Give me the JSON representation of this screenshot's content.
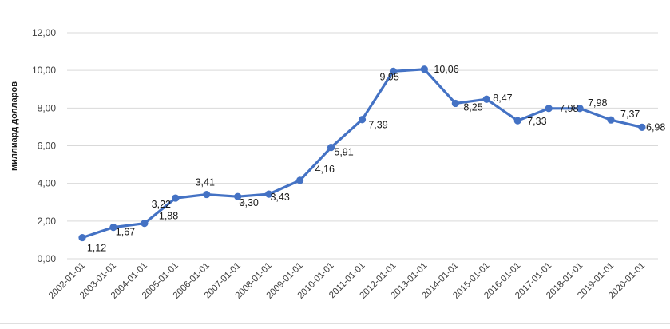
{
  "colors": {
    "series": "#4472C4",
    "grid": "#d9d9d9"
  },
  "chart_data": {
    "type": "line",
    "title": "",
    "xlabel": "",
    "ylabel": "миллиард долларов",
    "ylim": [
      0,
      12
    ],
    "y_ticks": [
      "0,00",
      "2,00",
      "4,00",
      "6,00",
      "8,00",
      "10,00",
      "12,00"
    ],
    "grid": true,
    "legend": "none",
    "categories": [
      "2002-01-01",
      "2003-01-01",
      "2004-01-01",
      "2005-01-01",
      "2006-01-01",
      "2007-01-01",
      "2008-01-01",
      "2009-01-01",
      "2010-01-01",
      "2011-01-01",
      "2012-01-01",
      "2013-01-01",
      "2014-01-01",
      "2015-01-01",
      "2016-01-01",
      "2017-01-01",
      "2018-01-01",
      "2019-01-01",
      "2020-01-01"
    ],
    "values": [
      1.12,
      1.67,
      1.88,
      3.22,
      3.41,
      3.3,
      3.43,
      4.16,
      5.91,
      7.39,
      9.95,
      10.06,
      8.25,
      8.47,
      7.33,
      7.98,
      7.98,
      7.37,
      6.98
    ],
    "data_labels": [
      "1,12",
      "1,67",
      "1,88",
      "3,22",
      "3,41",
      "3,30",
      "3,43",
      "4,16",
      "5,91",
      "7,39",
      "9,95",
      "10,06",
      "8,25",
      "8,47",
      "7,33",
      "7,98",
      "7,98",
      "7,37",
      "6,98"
    ]
  }
}
